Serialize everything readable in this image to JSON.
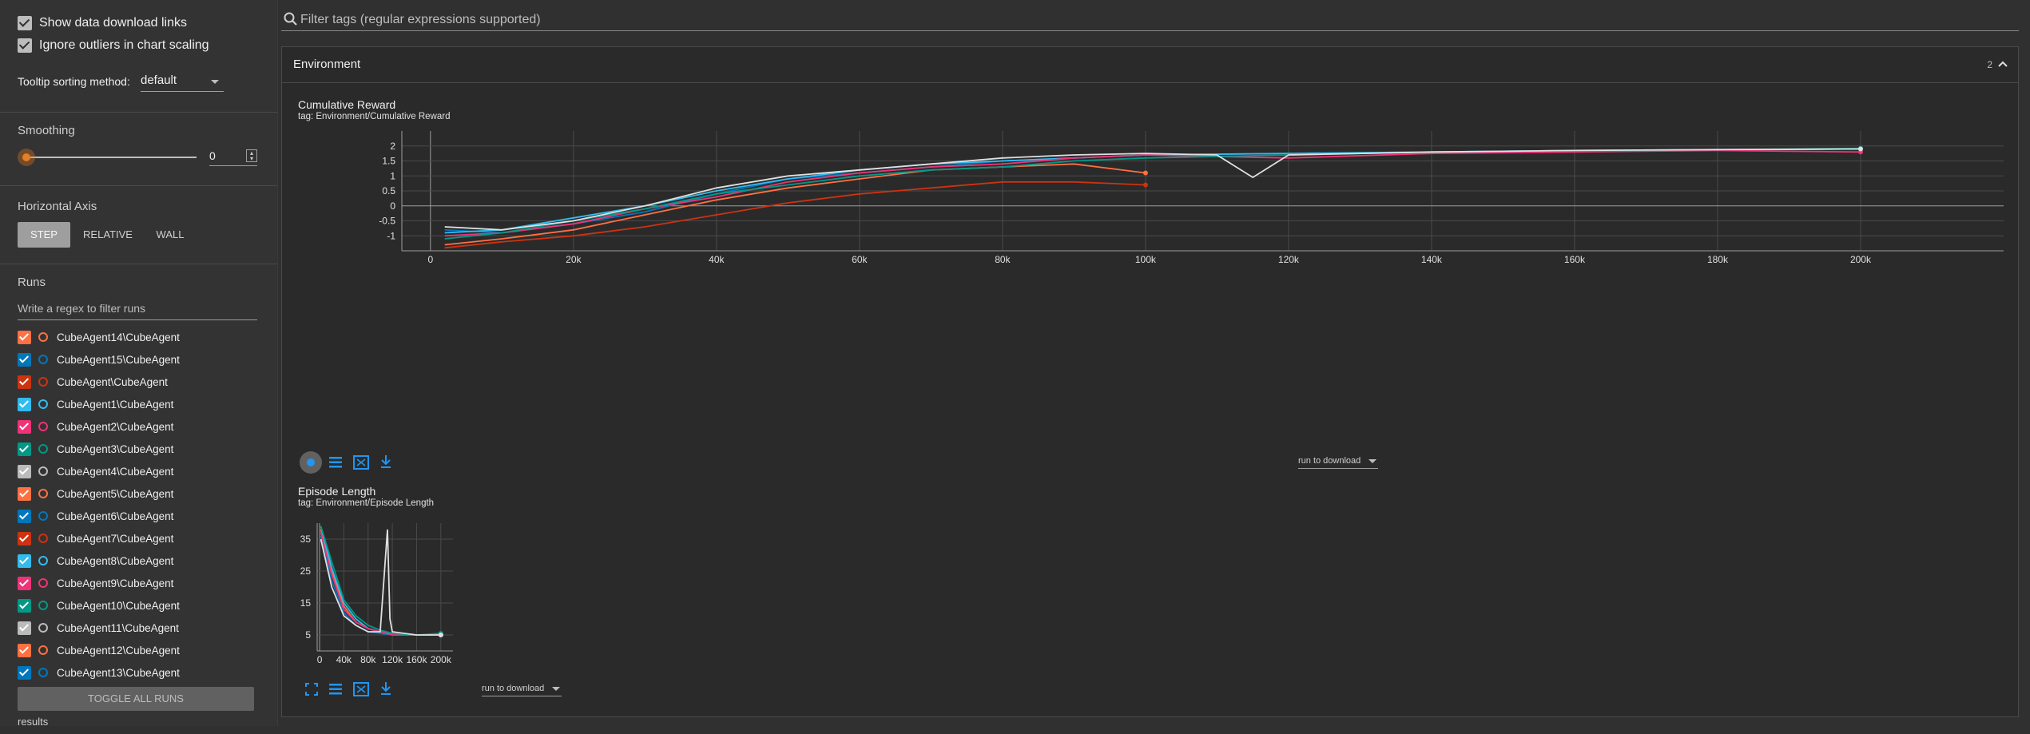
{
  "sidebar": {
    "show_download": "Show data download links",
    "ignore_outliers": "Ignore outliers in chart scaling",
    "tooltip_label": "Tooltip sorting method:",
    "tooltip_value": "default",
    "smoothing_label": "Smoothing",
    "smoothing_value": "0",
    "horizontal_axis_label": "Horizontal Axis",
    "axis_options": [
      "STEP",
      "RELATIVE",
      "WALL"
    ],
    "runs_label": "Runs",
    "runs_filter_placeholder": "Write a regex to filter runs",
    "runs": [
      {
        "name": "CubeAgent14\\CubeAgent",
        "color": "#ff7043"
      },
      {
        "name": "CubeAgent15\\CubeAgent",
        "color": "#0077bb"
      },
      {
        "name": "CubeAgent\\CubeAgent",
        "color": "#cc3311"
      },
      {
        "name": "CubeAgent1\\CubeAgent",
        "color": "#33bbee"
      },
      {
        "name": "CubeAgent2\\CubeAgent",
        "color": "#ee3377"
      },
      {
        "name": "CubeAgent3\\CubeAgent",
        "color": "#009988"
      },
      {
        "name": "CubeAgent4\\CubeAgent",
        "color": "#bbbbbb"
      },
      {
        "name": "CubeAgent5\\CubeAgent",
        "color": "#ff7043"
      },
      {
        "name": "CubeAgent6\\CubeAgent",
        "color": "#0077bb"
      },
      {
        "name": "CubeAgent7\\CubeAgent",
        "color": "#cc3311"
      },
      {
        "name": "CubeAgent8\\CubeAgent",
        "color": "#33bbee"
      },
      {
        "name": "CubeAgent9\\CubeAgent",
        "color": "#ee3377"
      },
      {
        "name": "CubeAgent10\\CubeAgent",
        "color": "#009988"
      },
      {
        "name": "CubeAgent11\\CubeAgent",
        "color": "#bbbbbb"
      },
      {
        "name": "CubeAgent12\\CubeAgent",
        "color": "#ff7043"
      },
      {
        "name": "CubeAgent13\\CubeAgent",
        "color": "#0077bb"
      }
    ],
    "toggle_all": "TOGGLE ALL RUNS",
    "results": "results"
  },
  "main": {
    "filter_placeholder": "Filter tags (regular expressions supported)",
    "group_title": "Environment",
    "group_count": "2",
    "run_to_download": "run to download"
  },
  "chart_data": [
    {
      "type": "line",
      "title": "Cumulative Reward",
      "tag": "tag: Environment/Cumulative Reward",
      "xlim": [
        -4000,
        220000
      ],
      "ylim": [
        -1.5,
        2.5
      ],
      "x_ticks": [
        0,
        20000,
        40000,
        60000,
        80000,
        100000,
        120000,
        140000,
        160000,
        180000,
        200000
      ],
      "x_tick_labels": [
        "0",
        "20k",
        "40k",
        "60k",
        "80k",
        "100k",
        "120k",
        "140k",
        "160k",
        "180k",
        "200k"
      ],
      "y_ticks": [
        -1,
        -0.5,
        0,
        0.5,
        1,
        1.5,
        2
      ],
      "y_tick_labels": [
        "-1",
        "-0.5",
        "0",
        "0.5",
        "1",
        "1.5",
        "2"
      ],
      "grid": true,
      "series": [
        {
          "color": "#ff7043",
          "x": [
            2000,
            10000,
            20000,
            30000,
            40000,
            50000,
            60000,
            70000,
            80000,
            90000,
            100000
          ],
          "y": [
            -1.3,
            -1.1,
            -0.8,
            -0.3,
            0.2,
            0.6,
            0.9,
            1.2,
            1.3,
            1.4,
            1.1
          ]
        },
        {
          "color": "#0077bb",
          "x": [
            2000,
            10000,
            20000,
            30000,
            40000,
            50000,
            60000,
            70000,
            80000,
            90000,
            100000,
            120000,
            140000,
            160000,
            180000,
            200000
          ],
          "y": [
            -0.8,
            -0.9,
            -0.6,
            -0.2,
            0.4,
            0.9,
            1.1,
            1.3,
            1.5,
            1.6,
            1.7,
            1.75,
            1.8,
            1.85,
            1.88,
            1.9
          ]
        },
        {
          "color": "#cc3311",
          "x": [
            2000,
            10000,
            20000,
            30000,
            40000,
            50000,
            60000,
            70000,
            80000,
            90000,
            100000
          ],
          "y": [
            -1.4,
            -1.2,
            -1.0,
            -0.7,
            -0.3,
            0.1,
            0.4,
            0.6,
            0.8,
            0.8,
            0.7
          ]
        },
        {
          "color": "#33bbee",
          "x": [
            2000,
            10000,
            20000,
            30000,
            40000,
            50000,
            60000,
            70000,
            80000,
            90000,
            100000,
            120000,
            140000,
            160000,
            180000,
            200000
          ],
          "y": [
            -0.9,
            -0.8,
            -0.4,
            0.0,
            0.5,
            0.9,
            1.2,
            1.4,
            1.5,
            1.6,
            1.7,
            1.75,
            1.8,
            1.85,
            1.87,
            1.9
          ]
        },
        {
          "color": "#ee3377",
          "x": [
            2000,
            10000,
            20000,
            30000,
            40000,
            50000,
            60000,
            70000,
            80000,
            90000,
            100000,
            120000,
            140000,
            160000,
            180000,
            200000
          ],
          "y": [
            -1.0,
            -0.9,
            -0.6,
            -0.1,
            0.3,
            0.8,
            1.1,
            1.3,
            1.4,
            1.6,
            1.7,
            1.6,
            1.75,
            1.8,
            1.85,
            1.8
          ]
        },
        {
          "color": "#009988",
          "x": [
            2000,
            10000,
            20000,
            30000,
            40000,
            50000,
            60000,
            70000,
            80000,
            90000,
            100000,
            120000,
            140000,
            160000,
            180000,
            200000
          ],
          "y": [
            -1.1,
            -0.9,
            -0.5,
            -0.1,
            0.4,
            0.7,
            1.0,
            1.2,
            1.3,
            1.5,
            1.6,
            1.7,
            1.8,
            1.85,
            1.88,
            1.92
          ]
        },
        {
          "color": "#e0e0e0",
          "x": [
            2000,
            10000,
            20000,
            30000,
            40000,
            50000,
            60000,
            70000,
            80000,
            90000,
            100000,
            110000,
            115000,
            120000,
            140000,
            160000,
            180000,
            200000
          ],
          "y": [
            -0.7,
            -0.8,
            -0.5,
            0.0,
            0.6,
            1.0,
            1.2,
            1.4,
            1.6,
            1.7,
            1.75,
            1.7,
            0.95,
            1.7,
            1.8,
            1.85,
            1.88,
            1.9
          ]
        }
      ]
    },
    {
      "type": "line",
      "title": "Episode Length",
      "tag": "tag: Environment/Episode Length",
      "xlim": [
        -4000,
        220000
      ],
      "ylim": [
        0,
        40
      ],
      "x_ticks": [
        0,
        40000,
        80000,
        120000,
        160000,
        200000
      ],
      "x_tick_labels": [
        "0",
        "40k",
        "80k",
        "120k",
        "160k",
        "200k"
      ],
      "y_ticks": [
        5,
        15,
        25,
        35
      ],
      "y_tick_labels": [
        "5",
        "15",
        "25",
        "35"
      ],
      "grid": true,
      "series": [
        {
          "color": "#ff7043",
          "x": [
            2000,
            20000,
            40000,
            60000,
            80000,
            100000,
            120000,
            160000,
            200000
          ],
          "y": [
            38,
            25,
            14,
            9,
            7,
            6,
            5.5,
            5,
            5
          ]
        },
        {
          "color": "#0077bb",
          "x": [
            2000,
            20000,
            40000,
            60000,
            80000,
            100000,
            120000,
            160000,
            200000
          ],
          "y": [
            36,
            22,
            12,
            8,
            6,
            5.5,
            5,
            5,
            5
          ]
        },
        {
          "color": "#33bbee",
          "x": [
            2000,
            20000,
            40000,
            60000,
            80000,
            100000,
            120000,
            160000,
            200000
          ],
          "y": [
            39,
            26,
            15,
            10,
            7,
            6,
            5.5,
            5,
            5
          ]
        },
        {
          "color": "#ee3377",
          "x": [
            2000,
            20000,
            40000,
            60000,
            80000,
            100000,
            120000,
            160000,
            200000
          ],
          "y": [
            37,
            24,
            13,
            9,
            7,
            6,
            5,
            5,
            5
          ]
        },
        {
          "color": "#009988",
          "x": [
            2000,
            20000,
            40000,
            60000,
            80000,
            100000,
            120000,
            160000,
            200000
          ],
          "y": [
            39,
            28,
            16,
            11,
            8,
            6.5,
            5.5,
            5,
            5.5
          ]
        },
        {
          "color": "#e0e0e0",
          "x": [
            2000,
            20000,
            40000,
            60000,
            80000,
            100000,
            112000,
            116000,
            120000,
            160000,
            200000
          ],
          "y": [
            35,
            20,
            11,
            8,
            6,
            6,
            38,
            10,
            6,
            5,
            5
          ]
        }
      ]
    }
  ]
}
